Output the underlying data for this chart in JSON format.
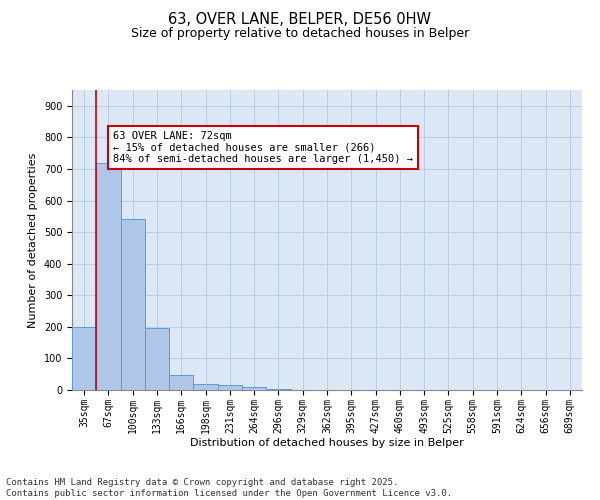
{
  "title_line1": "63, OVER LANE, BELPER, DE56 0HW",
  "title_line2": "Size of property relative to detached houses in Belper",
  "xlabel": "Distribution of detached houses by size in Belper",
  "ylabel": "Number of detached properties",
  "categories": [
    "35sqm",
    "67sqm",
    "100sqm",
    "133sqm",
    "166sqm",
    "198sqm",
    "231sqm",
    "264sqm",
    "296sqm",
    "329sqm",
    "362sqm",
    "395sqm",
    "427sqm",
    "460sqm",
    "493sqm",
    "525sqm",
    "558sqm",
    "591sqm",
    "624sqm",
    "656sqm",
    "689sqm"
  ],
  "values": [
    200,
    720,
    540,
    195,
    47,
    20,
    15,
    10,
    3,
    0,
    0,
    0,
    0,
    0,
    0,
    0,
    0,
    0,
    0,
    0,
    0
  ],
  "bar_color": "#aec6e8",
  "bar_edge_color": "#5b9bd5",
  "vline_x": 0.5,
  "vline_color": "#cc0000",
  "annotation_text": "63 OVER LANE: 72sqm\n← 15% of detached houses are smaller (266)\n84% of semi-detached houses are larger (1,450) →",
  "annotation_box_color": "#cc0000",
  "annotation_text_color": "black",
  "annotation_bg_color": "white",
  "ylim": [
    0,
    950
  ],
  "yticks": [
    0,
    100,
    200,
    300,
    400,
    500,
    600,
    700,
    800,
    900
  ],
  "grid_color": "#b8cfe8",
  "background_color": "#dce8f5",
  "footer_line1": "Contains HM Land Registry data © Crown copyright and database right 2025.",
  "footer_line2": "Contains public sector information licensed under the Open Government Licence v3.0.",
  "title_fontsize": 10.5,
  "subtitle_fontsize": 9,
  "axis_label_fontsize": 8,
  "tick_fontsize": 7,
  "annotation_fontsize": 7.5,
  "footer_fontsize": 6.5
}
